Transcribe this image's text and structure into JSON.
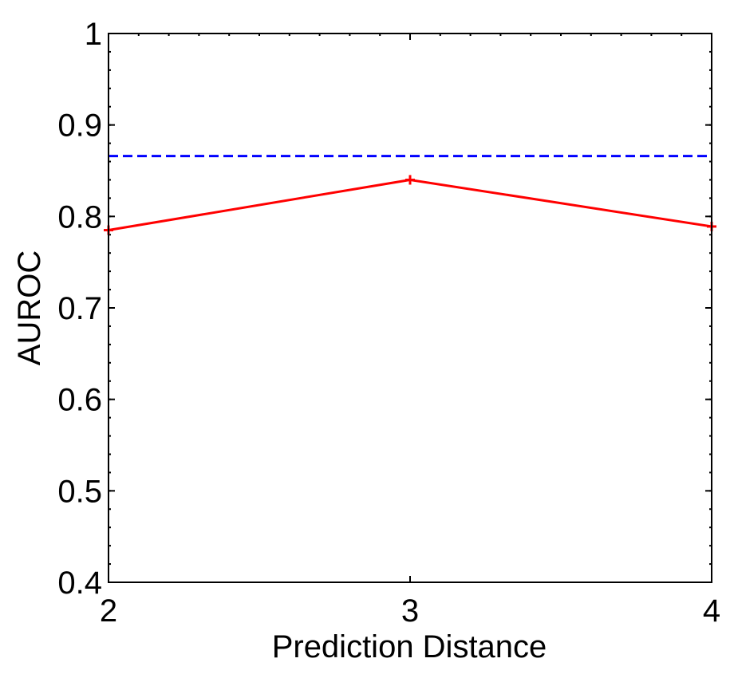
{
  "chart_data": {
    "type": "line",
    "title": "",
    "xlabel": "Prediction Distance",
    "ylabel": "AUROC",
    "x": [
      2,
      3,
      4
    ],
    "xlim": [
      2,
      4
    ],
    "ylim": [
      0.4,
      1
    ],
    "xticks": [
      "2",
      "3",
      "4"
    ],
    "yticks": [
      "0.4",
      "0.5",
      "0.6",
      "0.7",
      "0.8",
      "0.9",
      "1"
    ],
    "grid": false,
    "legend": null,
    "series": [
      {
        "style": "solid",
        "marker": "+",
        "color": "#ff0000",
        "values": [
          0.785,
          0.84,
          0.789
        ]
      },
      {
        "style": "dashed",
        "color": "#0000ff",
        "values": [
          0.866,
          0.866,
          0.866
        ]
      }
    ]
  }
}
